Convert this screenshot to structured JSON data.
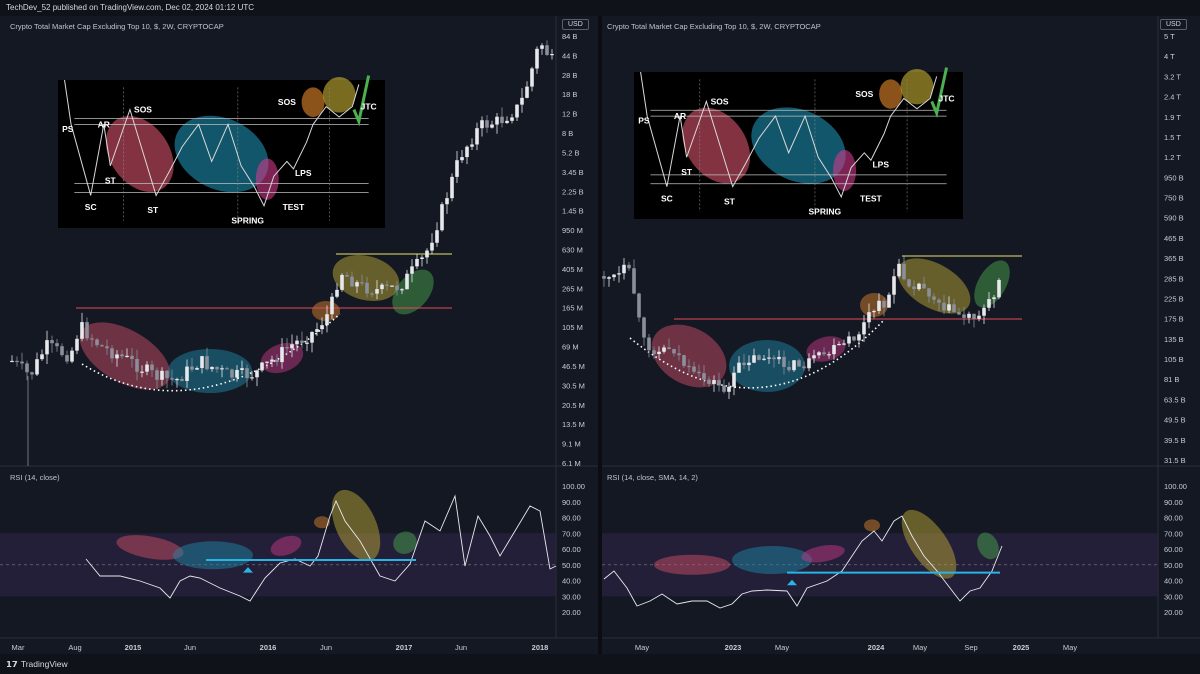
{
  "header": {
    "text": "TechDev_52 published on TradingView.com, Dec 02, 2024 01:12 UTC"
  },
  "footer": {
    "brand": "TradingView",
    "logo_icon": "tradingview-logo-icon"
  },
  "colors": {
    "background": "#141823",
    "candle_bull": "#e6e8ec",
    "candle_bear": "#8a8f99",
    "accumulation_red": "#d9536a",
    "accumulation_blue": "#1d8fb0",
    "accumulation_pink": "#d03a8c",
    "markup_orange": "#e8892c",
    "markup_yellow": "#c9b335",
    "markup_green": "#4caf50",
    "resistance_line": "#e24a5a",
    "breakout_line": "#e8e26a",
    "rsi_support_line": "#27b5e6",
    "rsi_band": "#2a2140"
  },
  "charts": [
    {
      "title": "Crypto Total Market Cap Excluding Top 10, $, 2W, CRYPTOCAP",
      "currency_label": "USD",
      "price_axis": [
        "84 B",
        "44 B",
        "28 B",
        "18 B",
        "12 B",
        "8 B",
        "5.2 B",
        "3.45 B",
        "2.25 B",
        "1.45 B",
        "950 M",
        "630 M",
        "405 M",
        "265 M",
        "165 M",
        "105 M",
        "69 M",
        "46.5 M",
        "30.5 M",
        "20.5 M",
        "13.5 M",
        "9.1 M",
        "6.1 M"
      ],
      "time_axis": [
        "Mar",
        "Aug",
        "2015",
        "Jun",
        "2016",
        "Jun",
        "2017",
        "Jun",
        "2018"
      ],
      "rsi_title": "RSI (14, close)",
      "rsi_axis": [
        "100.00",
        "90.00",
        "80.00",
        "70.00",
        "60.00",
        "50.00",
        "40.00",
        "30.00",
        "20.00"
      ],
      "wyckoff_labels": [
        "PS",
        "AR",
        "SOS",
        "SC",
        "ST",
        "ST",
        "SPRING",
        "TEST",
        "LPS",
        "SOS",
        "JTC"
      ]
    },
    {
      "title": "Crypto Total Market Cap Excluding Top 10, $, 2W, CRYPTOCAP",
      "currency_label": "USD",
      "price_axis": [
        "5 T",
        "4 T",
        "3.2 T",
        "2.4 T",
        "1.9 T",
        "1.5 T",
        "1.2 T",
        "950 B",
        "750 B",
        "590 B",
        "465 B",
        "365 B",
        "285 B",
        "225 B",
        "175 B",
        "135 B",
        "105 B",
        "81 B",
        "63.5 B",
        "49.5 B",
        "39.5 B",
        "31.5 B"
      ],
      "time_axis": [
        "May",
        "2023",
        "May",
        "2024",
        "May",
        "Sep",
        "2025",
        "May"
      ],
      "rsi_title": "RSI (14, close, SMA, 14, 2)",
      "rsi_axis": [
        "100.00",
        "90.00",
        "80.00",
        "70.00",
        "60.00",
        "50.00",
        "40.00",
        "30.00",
        "20.00"
      ],
      "wyckoff_labels": [
        "PS",
        "AR",
        "SOS",
        "SC",
        "ST",
        "ST",
        "SPRING",
        "TEST",
        "LPS",
        "SOS",
        "JTC"
      ]
    }
  ],
  "chart_data": [
    {
      "type": "candlestick",
      "title": "Crypto Total Market Cap Excluding Top 10, $, 2W, CRYPTOCAP",
      "yscale": "log",
      "ylim": [
        "6.1 M",
        "84 B"
      ],
      "x_range": [
        "Mar 2014",
        "Mar 2018"
      ],
      "approx_close_path": [
        {
          "x": "Mar 2014",
          "y": "60 M"
        },
        {
          "x": "Aug 2014",
          "y": "150 M"
        },
        {
          "x": "2015",
          "y": "55 M"
        },
        {
          "x": "Jun 2015",
          "y": "50 M"
        },
        {
          "x": "2016",
          "y": "45 M"
        },
        {
          "x": "Jun 2016",
          "y": "200 M"
        },
        {
          "x": "2017",
          "y": "300 M"
        },
        {
          "x": "Jun 2017",
          "y": "5.2 B"
        },
        {
          "x": "2018",
          "y": "60 B"
        }
      ],
      "rsi": {
        "title": "RSI (14, close)",
        "ylim": [
          20,
          100
        ],
        "band": [
          30,
          70
        ],
        "midline": 50,
        "support_level": 53
      }
    },
    {
      "type": "candlestick",
      "title": "Crypto Total Market Cap Excluding Top 10, $, 2W, CRYPTOCAP",
      "yscale": "log",
      "ylim": [
        "31.5 B",
        "5 T"
      ],
      "x_range": [
        "Mar 2022",
        "Jul 2025"
      ],
      "approx_close_path": [
        {
          "x": "Mar 2022",
          "y": "350 B"
        },
        {
          "x": "May 2022",
          "y": "140 B"
        },
        {
          "x": "2023",
          "y": "90 B"
        },
        {
          "x": "May 2023",
          "y": "100 B"
        },
        {
          "x": "2024",
          "y": "200 B"
        },
        {
          "x": "Mar 2024",
          "y": "350 B"
        },
        {
          "x": "Sep 2024",
          "y": "200 B"
        },
        {
          "x": "Dec 2024",
          "y": "360 B"
        }
      ],
      "rsi": {
        "title": "RSI (14, close, SMA, 14, 2)",
        "ylim": [
          20,
          100
        ],
        "band": [
          30,
          70
        ],
        "midline": 50,
        "support_level": 45
      }
    }
  ]
}
